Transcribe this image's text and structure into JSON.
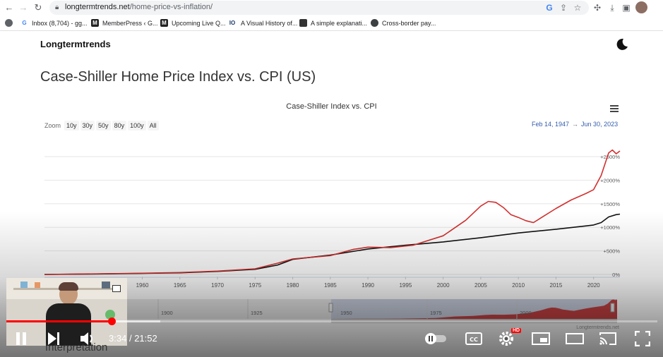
{
  "browser": {
    "url_domain": "longtermtrends.net",
    "url_path": "/home-price-vs-inflation/",
    "bookmarks": [
      {
        "label": "Inbox (8,704) - gg...",
        "icon": "google-icon"
      },
      {
        "label": "MemberPress ‹ G...",
        "icon": "memberpress-icon"
      },
      {
        "label": "Upcoming Live Q...",
        "icon": "memberpress-icon"
      },
      {
        "label": "A Visual History of...",
        "icon": "io-icon"
      },
      {
        "label": "A simple explanati...",
        "icon": "person-icon"
      },
      {
        "label": "Cross-border pay...",
        "icon": "globe-icon"
      }
    ]
  },
  "page": {
    "logo": "Longtermtrends",
    "title": "Case-Shiller Home Price Index vs. CPI (US)",
    "interpretation_heading": "Interpretation"
  },
  "chart": {
    "zoom_label": "Zoom",
    "zoom_buttons": [
      "10y",
      "30y",
      "50y",
      "80y",
      "100y",
      "All"
    ],
    "range_from": "Feb 14, 1947",
    "range_arrow": "→",
    "range_to": "Jun 30, 2023",
    "navigator_ticks": [
      "1900",
      "1925",
      "1950",
      "1975",
      "2000"
    ],
    "credit": "Longtermtrends.net"
  },
  "chart_data": {
    "type": "line",
    "title": "Case-Shiller Index vs. CPI",
    "x_ticks": [
      "1960",
      "1965",
      "1970",
      "1975",
      "1980",
      "1985",
      "1990",
      "1995",
      "2000",
      "2005",
      "2010",
      "2015",
      "2020"
    ],
    "y_ticks": [
      "0%",
      "+500%",
      "+1000%",
      "+1500%",
      "+2000%",
      "+2500%"
    ],
    "ylim": [
      0,
      2500
    ],
    "xlim": [
      1947,
      2023.5
    ],
    "series": [
      {
        "color": "#d32f2f",
        "points": [
          [
            1947,
            0
          ],
          [
            1955,
            15
          ],
          [
            1960,
            25
          ],
          [
            1965,
            40
          ],
          [
            1970,
            70
          ],
          [
            1975,
            120
          ],
          [
            1978,
            240
          ],
          [
            1980,
            330
          ],
          [
            1985,
            400
          ],
          [
            1988,
            530
          ],
          [
            1990,
            580
          ],
          [
            1993,
            570
          ],
          [
            1996,
            620
          ],
          [
            2000,
            820
          ],
          [
            2003,
            1150
          ],
          [
            2005,
            1450
          ],
          [
            2006,
            1550
          ],
          [
            2007,
            1530
          ],
          [
            2008,
            1420
          ],
          [
            2009,
            1270
          ],
          [
            2010,
            1210
          ],
          [
            2011,
            1140
          ],
          [
            2012,
            1100
          ],
          [
            2013,
            1200
          ],
          [
            2015,
            1400
          ],
          [
            2017,
            1580
          ],
          [
            2019,
            1720
          ],
          [
            2020,
            1800
          ],
          [
            2021,
            2100
          ],
          [
            2022,
            2580
          ],
          [
            2022.5,
            2640
          ],
          [
            2023,
            2560
          ],
          [
            2023.5,
            2620
          ]
        ]
      },
      {
        "color": "#111111",
        "points": [
          [
            1947,
            0
          ],
          [
            1955,
            12
          ],
          [
            1960,
            22
          ],
          [
            1965,
            35
          ],
          [
            1970,
            65
          ],
          [
            1975,
            110
          ],
          [
            1978,
            200
          ],
          [
            1980,
            320
          ],
          [
            1985,
            410
          ],
          [
            1990,
            540
          ],
          [
            1995,
            620
          ],
          [
            2000,
            690
          ],
          [
            2005,
            780
          ],
          [
            2010,
            880
          ],
          [
            2015,
            960
          ],
          [
            2019,
            1030
          ],
          [
            2020,
            1050
          ],
          [
            2021,
            1100
          ],
          [
            2022,
            1220
          ],
          [
            2023,
            1270
          ],
          [
            2023.5,
            1280
          ]
        ]
      }
    ]
  },
  "video": {
    "time_current": "3:34",
    "time_sep": "/",
    "time_total": "21:52",
    "progress_fraction": 0.163,
    "buffered_fraction": 0.237,
    "hd_label": "HD"
  }
}
